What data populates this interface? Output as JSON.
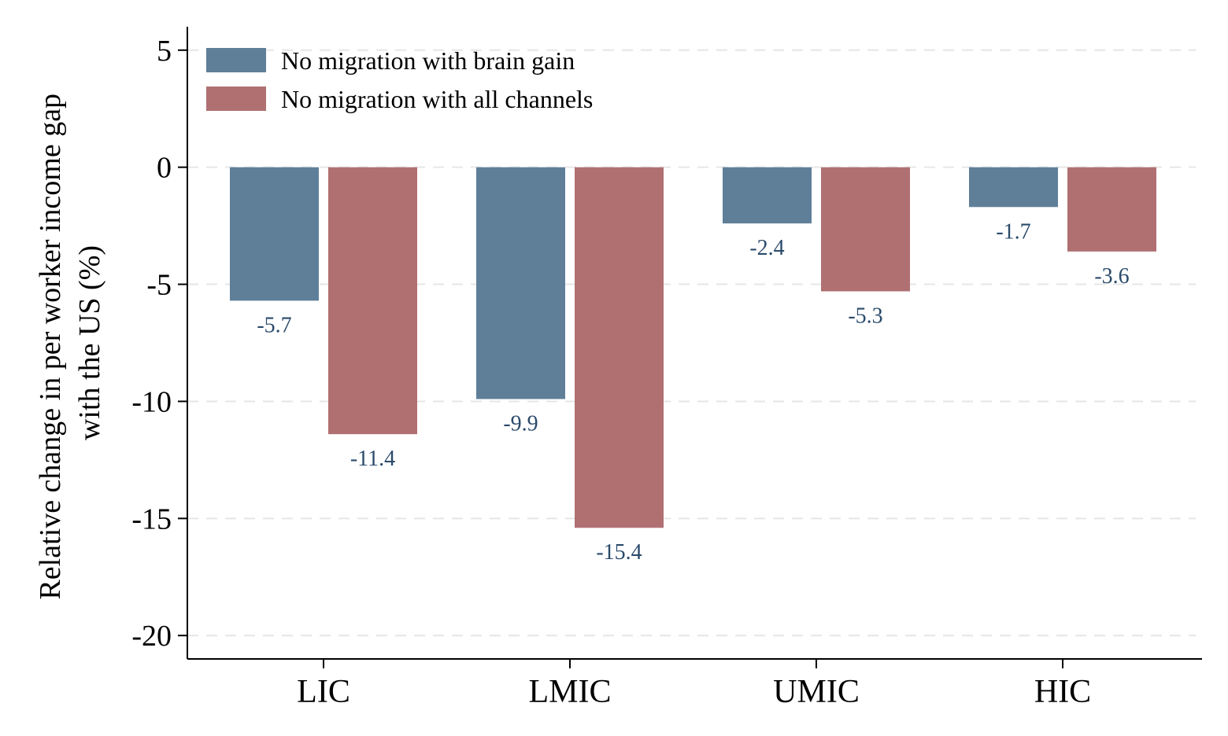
{
  "chart_data": {
    "type": "bar",
    "title": "",
    "xlabel": "",
    "ylabel_lines": [
      "Relative change in per worker income gap",
      "with the US (%)"
    ],
    "categories": [
      "LIC",
      "LMIC",
      "UMIC",
      "HIC"
    ],
    "series": [
      {
        "name": "No migration with brain gain",
        "color": "#5f7f99",
        "values": [
          -5.7,
          -9.9,
          -2.4,
          -1.7
        ]
      },
      {
        "name": "No migration with all channels",
        "color": "#b07072",
        "values": [
          -11.4,
          -15.4,
          -5.3,
          -3.6
        ]
      }
    ],
    "ylim": [
      -21,
      6
    ],
    "yticks": [
      5,
      0,
      -5,
      -10,
      -15,
      -20
    ],
    "grid": "horizontal-dashed",
    "legend": "top-left",
    "data_label_color": "#2a4a6b"
  }
}
